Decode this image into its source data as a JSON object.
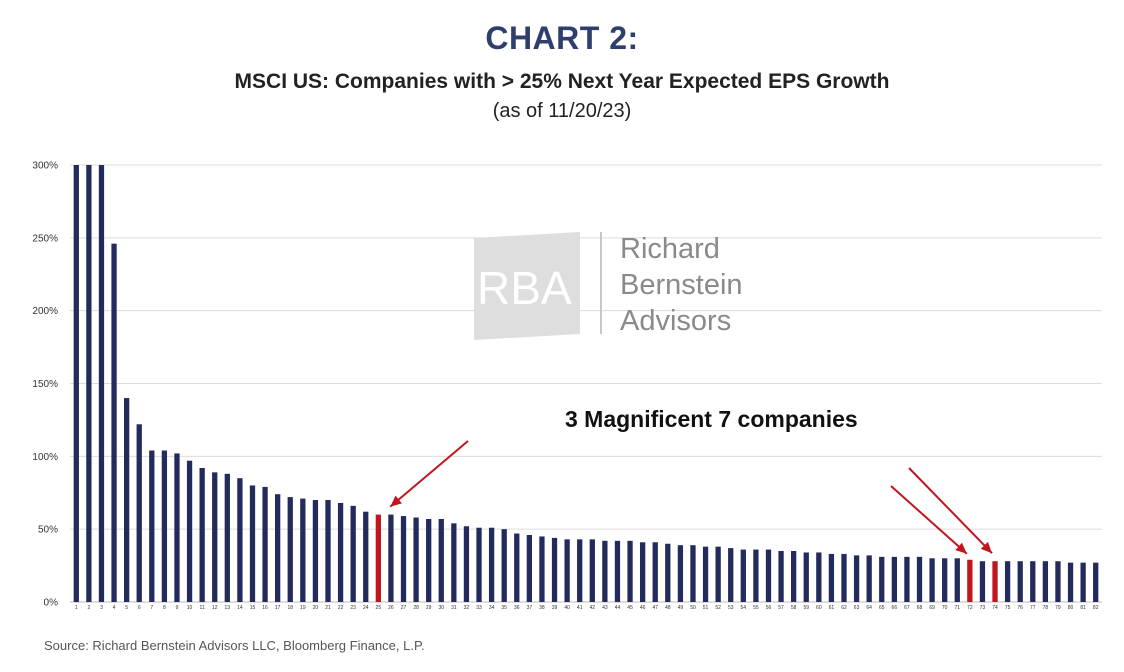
{
  "header": {
    "title": "CHART 2:",
    "subtitle": "MSCI US: Companies with > 25% Next Year Expected EPS Growth",
    "date_note": "(as of 11/20/23)"
  },
  "footer": {
    "source": "Source: Richard Bernstein Advisors LLC, Bloomberg Finance, L.P."
  },
  "watermark": {
    "mark": "RBA",
    "name_lines": [
      "Richard",
      "Bernstein",
      "Advisors"
    ]
  },
  "chart_data": {
    "type": "bar",
    "title": "MSCI US: Companies with > 25% Next Year Expected EPS Growth",
    "subtitle": "(as of 11/20/23)",
    "xlabel": "",
    "ylabel": "",
    "ylim": [
      0,
      300
    ],
    "yticks": [
      0,
      50,
      100,
      150,
      200,
      250,
      300
    ],
    "ytick_labels": [
      "0%",
      "50%",
      "100%",
      "150%",
      "200%",
      "250%",
      "300%"
    ],
    "grid": true,
    "legend": "none",
    "categories": [
      "1",
      "2",
      "3",
      "4",
      "5",
      "6",
      "7",
      "8",
      "9",
      "10",
      "11",
      "12",
      "13",
      "14",
      "15",
      "16",
      "17",
      "18",
      "19",
      "20",
      "21",
      "22",
      "23",
      "24",
      "25",
      "26",
      "27",
      "28",
      "29",
      "30",
      "31",
      "32",
      "33",
      "34",
      "35",
      "36",
      "37",
      "38",
      "39",
      "40",
      "41",
      "42",
      "43",
      "44",
      "45",
      "46",
      "47",
      "48",
      "49",
      "50",
      "51",
      "52",
      "53",
      "54",
      "55",
      "56",
      "57",
      "58",
      "59",
      "60",
      "61",
      "62",
      "63",
      "64",
      "65",
      "66",
      "67",
      "68",
      "69",
      "70",
      "71",
      "72",
      "73",
      "74",
      "75",
      "76",
      "77",
      "78",
      "79",
      "80",
      "81",
      "82"
    ],
    "values": [
      300,
      300,
      300,
      246,
      140,
      122,
      104,
      104,
      102,
      97,
      92,
      89,
      88,
      85,
      80,
      79,
      74,
      72,
      71,
      70,
      70,
      68,
      66,
      62,
      60,
      60,
      59,
      58,
      57,
      57,
      54,
      52,
      51,
      51,
      50,
      47,
      46,
      45,
      44,
      43,
      43,
      43,
      42,
      42,
      42,
      41,
      41,
      40,
      39,
      39,
      38,
      38,
      37,
      36,
      36,
      36,
      35,
      35,
      34,
      34,
      33,
      33,
      32,
      32,
      31,
      31,
      31,
      31,
      30,
      30,
      30,
      29,
      28,
      28,
      28,
      28,
      28,
      28,
      28,
      27,
      27,
      27
    ],
    "highlighted": [
      25,
      72,
      74
    ],
    "colors": {
      "bar": "#232a5c",
      "highlight": "#c0161d",
      "grid": "#dcdcdc",
      "arrow": "#c0161d"
    },
    "annotation": "3 Magnificent 7 companies"
  }
}
